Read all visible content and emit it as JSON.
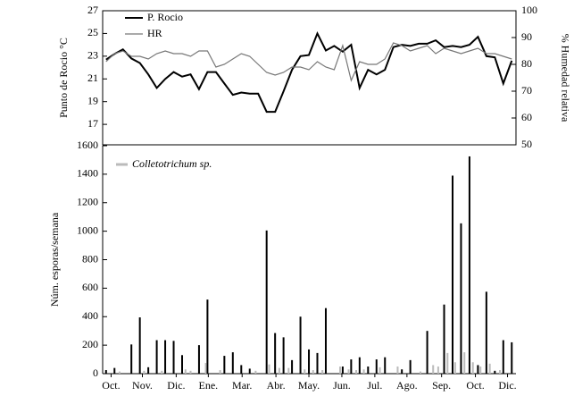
{
  "chart_data": [
    {
      "type": "line",
      "ylabel": "Punto de Rocio °C",
      "y2label": "% Humedad relativa",
      "xlim": [
        -0.4,
        48.5
      ],
      "ylim": [
        15.2,
        27
      ],
      "yticks": [
        17,
        19,
        21,
        23,
        25,
        27
      ],
      "y2lim": [
        50,
        100
      ],
      "y2ticks": [
        50,
        60,
        70,
        80,
        90,
        100
      ],
      "legend": "upper left",
      "x": [
        0,
        1,
        2,
        3,
        4,
        5,
        6,
        7,
        8,
        9,
        10,
        11,
        12,
        13,
        14,
        15,
        16,
        17,
        18,
        19,
        20,
        21,
        22,
        23,
        24,
        25,
        26,
        27,
        28,
        29,
        30,
        31,
        32,
        33,
        34,
        35,
        36,
        37,
        38,
        39,
        40,
        41,
        42,
        43,
        44,
        45,
        46,
        47,
        48
      ],
      "series": [
        {
          "name": "P. Rocio",
          "color": "#000000",
          "values": [
            22.7,
            23.2,
            23.6,
            22.8,
            22.4,
            21.4,
            20.2,
            21.0,
            21.6,
            21.2,
            21.4,
            20.1,
            21.6,
            21.6,
            20.6,
            19.6,
            19.8,
            19.7,
            19.7,
            18.1,
            18.1,
            19.9,
            21.8,
            23.0,
            23.1,
            25.0,
            23.5,
            23.9,
            23.4,
            24.0,
            20.2,
            21.8,
            21.4,
            21.8,
            23.8,
            24.0,
            23.9,
            24.1,
            24.1,
            24.4,
            23.8,
            23.9,
            23.8,
            24.0,
            24.7,
            23.0,
            22.9,
            20.6,
            22.6
          ]
        },
        {
          "name": "HR",
          "color": "#777777",
          "axis": "y2",
          "values": [
            81,
            84,
            85,
            83,
            83,
            82,
            84,
            85,
            84,
            84,
            83,
            85,
            85,
            79,
            80,
            82,
            84,
            83,
            80,
            77,
            76,
            77,
            79,
            79,
            78,
            81,
            79,
            78,
            87,
            74,
            81,
            80,
            80,
            82,
            88,
            87,
            85,
            86,
            87,
            84,
            86,
            85,
            84,
            85,
            86,
            84,
            84,
            83,
            82
          ]
        }
      ]
    },
    {
      "type": "bar",
      "ylabel": "Núm. esporas/semana",
      "xlim": [
        -0.4,
        48.5
      ],
      "ylim": [
        0,
        1600
      ],
      "yticks": [
        0,
        200,
        400,
        600,
        800,
        1000,
        1200,
        1400,
        1600
      ],
      "xticks": [
        {
          "value": 0.6,
          "label": "Oct."
        },
        {
          "value": 4.3,
          "label": "Nov."
        },
        {
          "value": 8.3,
          "label": "Dic."
        },
        {
          "value": 12.1,
          "label": "Ene."
        },
        {
          "value": 16.1,
          "label": "Mar."
        },
        {
          "value": 20.1,
          "label": "Abr."
        },
        {
          "value": 24,
          "label": "May."
        },
        {
          "value": 27.9,
          "label": "Jun."
        },
        {
          "value": 31.8,
          "label": "Jul."
        },
        {
          "value": 35.6,
          "label": "Ago."
        },
        {
          "value": 39.7,
          "label": "Sep."
        },
        {
          "value": 43.7,
          "label": "Oct."
        },
        {
          "value": 47.5,
          "label": "Dic."
        }
      ],
      "legend": "upper left",
      "series": [
        {
          "color": "#000000",
          "x": [
            0,
            1,
            3,
            4,
            5,
            6,
            7,
            8,
            9,
            11,
            12,
            14,
            15,
            16,
            17,
            19,
            20,
            21,
            22,
            23,
            24,
            25,
            26,
            28,
            29,
            30,
            31,
            32,
            33,
            35,
            36,
            38,
            40,
            41,
            42,
            43,
            44,
            45,
            46,
            47,
            48
          ],
          "values": [
            25,
            40,
            205,
            395,
            45,
            235,
            235,
            230,
            130,
            200,
            520,
            125,
            150,
            60,
            35,
            1005,
            285,
            255,
            95,
            400,
            170,
            145,
            460,
            50,
            100,
            115,
            50,
            100,
            115,
            30,
            95,
            300,
            485,
            1390,
            1055,
            1525,
            60,
            575,
            20,
            235,
            220
          ]
        },
        {
          "name": "Colletotrichum sp.",
          "color": "#bbbbbb",
          "x": [
            1.6,
            4.5,
            6.6,
            9.4,
            10,
            11.8,
            13.5,
            17.7,
            19.3,
            20.5,
            21.6,
            23.5,
            24.5,
            25.6,
            27.7,
            28.7,
            29.6,
            30.5,
            32.4,
            34.5,
            37.2,
            38.7,
            39.3,
            40.4,
            41.3,
            42.4,
            43.4,
            44.3,
            45.4,
            46.6
          ],
          "values": [
            15,
            20,
            20,
            30,
            20,
            75,
            25,
            20,
            65,
            40,
            40,
            30,
            25,
            25,
            50,
            30,
            25,
            30,
            45,
            50,
            15,
            60,
            50,
            145,
            80,
            150,
            80,
            50,
            70,
            25
          ]
        }
      ]
    }
  ]
}
